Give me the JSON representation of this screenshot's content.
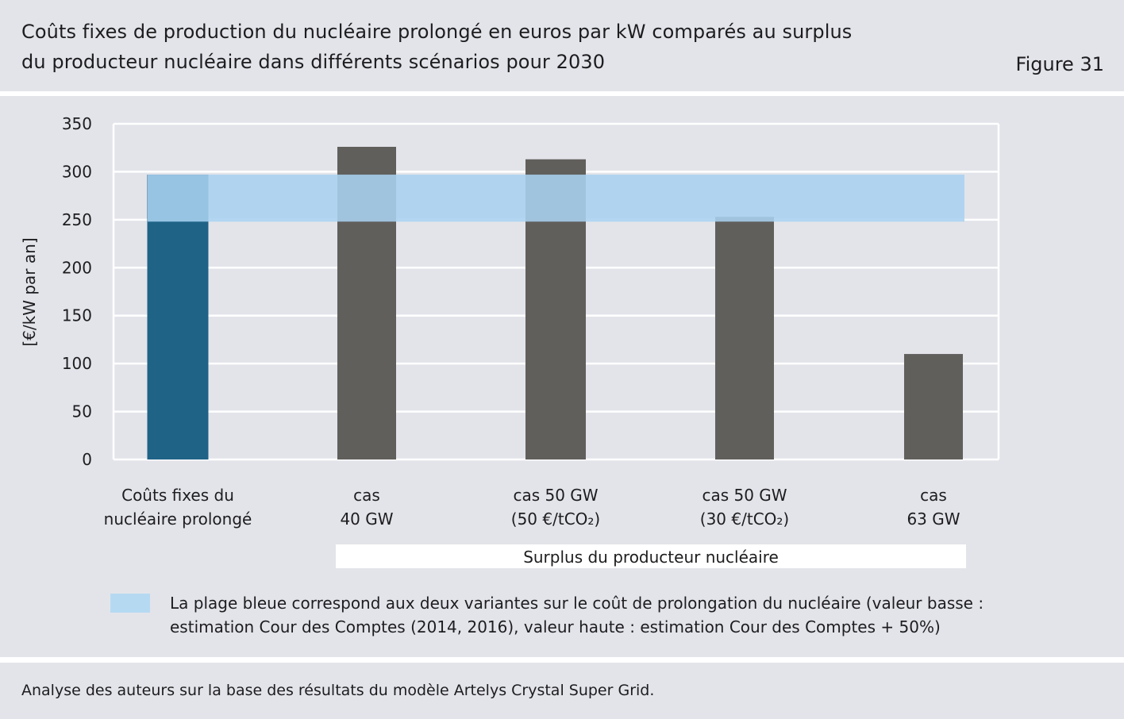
{
  "header": {
    "title_line_1": "Coûts fixes de production du nucléaire prolongé en euros par kW comparés au surplus",
    "title_line_2": "du producteur nucléaire dans différents scénarios pour 2030",
    "figure_label": "Figure 31"
  },
  "chart_data": {
    "type": "bar",
    "ylabel": "[€/kW par an]",
    "ylim": [
      0,
      350
    ],
    "yticks": [
      0,
      50,
      100,
      150,
      200,
      250,
      300,
      350
    ],
    "grid": true,
    "categories": [
      {
        "line1": "Coûts fixes du",
        "line2": "nucléaire prolongé"
      },
      {
        "line1": "cas",
        "line2": "40 GW"
      },
      {
        "line1": "cas 50 GW",
        "line2": "(50 €/tCO₂)"
      },
      {
        "line1": "cas 50 GW",
        "line2": "(30 €/tCO₂)"
      },
      {
        "line1": "cas",
        "line2": "63 GW"
      }
    ],
    "values": [
      297,
      326,
      313,
      253,
      110
    ],
    "bar_colors": [
      "#1f6387",
      "#615f5c",
      "#615f5c",
      "#615f5c",
      "#615f5c"
    ],
    "band": {
      "low": 248,
      "high": 297,
      "color": "#a9d2f0"
    },
    "group_label": "Surplus du producteur nucléaire"
  },
  "legend": {
    "swatch_color": "#b6d9f2",
    "line_1": "La plage bleue correspond aux deux variantes sur le coût de prolongation du nucléaire (valeur basse :",
    "line_2": "estimation Cour des Comptes (2014, 2016), valeur haute : estimation Cour des Comptes + 50%)"
  },
  "footer": {
    "source": "Analyse des auteurs sur la base des résultats du modèle Artelys Crystal Super Grid."
  }
}
